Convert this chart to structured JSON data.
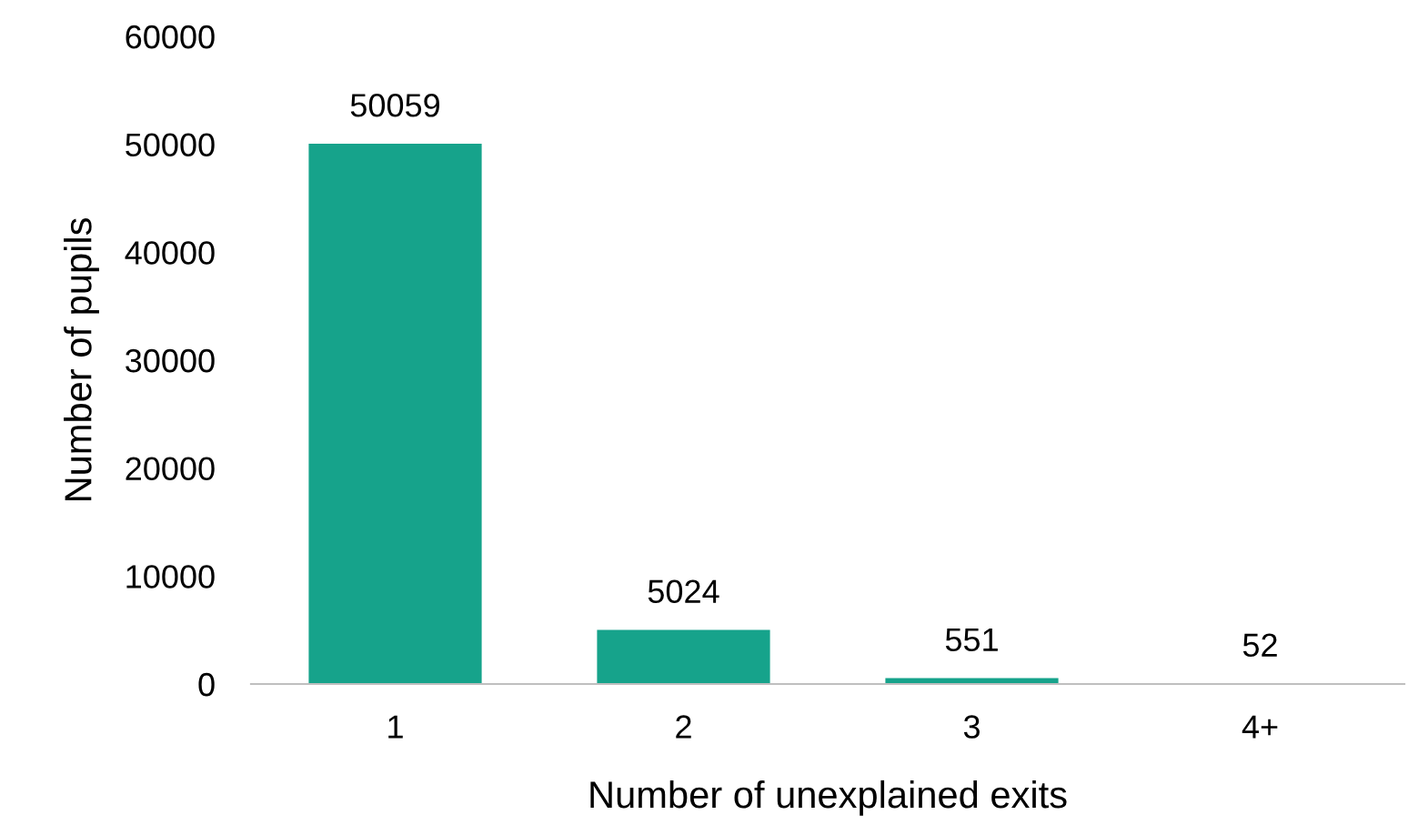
{
  "chart_data": {
    "type": "bar",
    "xlabel": "Number of unexplained exits",
    "ylabel": "Number of pupils",
    "categories": [
      "1",
      "2",
      "3",
      "4+"
    ],
    "values": [
      50059,
      5024,
      551,
      52
    ],
    "color": "#16a38b",
    "ylim": [
      0,
      60000
    ],
    "yticks": [
      0,
      10000,
      20000,
      30000,
      40000,
      50000,
      60000
    ],
    "grid": false,
    "data_labels": true
  }
}
